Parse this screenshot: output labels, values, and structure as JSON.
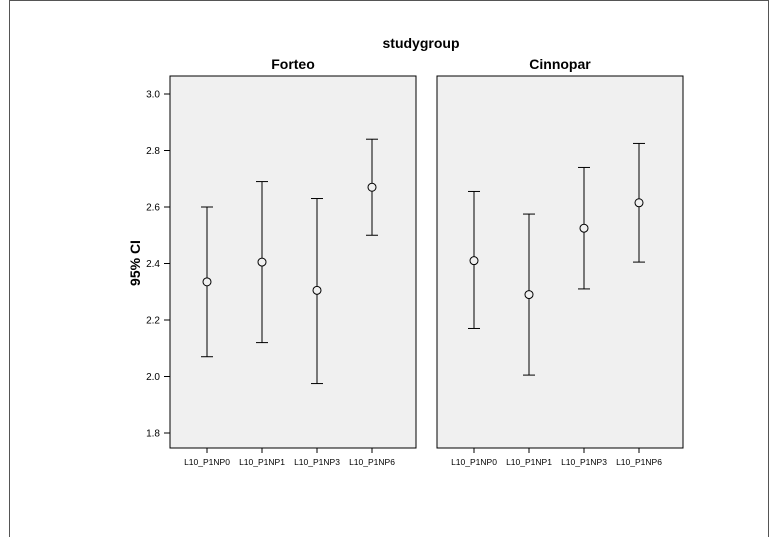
{
  "chart_data": {
    "type": "errorbar",
    "title": "studygroup",
    "ylabel": "95% CI",
    "ylim": [
      1.75,
      3.05
    ],
    "yticks": [
      "1.8",
      "2.0",
      "2.2",
      "2.4",
      "2.6",
      "2.8",
      "3.0"
    ],
    "categories": [
      "L10_P1NP0",
      "L10_P1NP1",
      "L10_P1NP3",
      "L10_P1NP6"
    ],
    "panels": [
      {
        "name": "Forteo",
        "points": [
          {
            "category": "L10_P1NP0",
            "mean": 2.335,
            "lower": 2.07,
            "upper": 2.6
          },
          {
            "category": "L10_P1NP1",
            "mean": 2.405,
            "lower": 2.12,
            "upper": 2.69
          },
          {
            "category": "L10_P1NP3",
            "mean": 2.305,
            "lower": 1.975,
            "upper": 2.63
          },
          {
            "category": "L10_P1NP6",
            "mean": 2.67,
            "lower": 2.5,
            "upper": 2.84
          }
        ]
      },
      {
        "name": "Cinnopar",
        "points": [
          {
            "category": "L10_P1NP0",
            "mean": 2.41,
            "lower": 2.17,
            "upper": 2.655
          },
          {
            "category": "L10_P1NP1",
            "mean": 2.29,
            "lower": 2.005,
            "upper": 2.575
          },
          {
            "category": "L10_P1NP3",
            "mean": 2.525,
            "lower": 2.31,
            "upper": 2.74
          },
          {
            "category": "L10_P1NP6",
            "mean": 2.615,
            "lower": 2.405,
            "upper": 2.825
          }
        ]
      }
    ],
    "grid": false,
    "colors": {
      "panel_background": "#f0f0f0",
      "ink": "#000000"
    }
  }
}
